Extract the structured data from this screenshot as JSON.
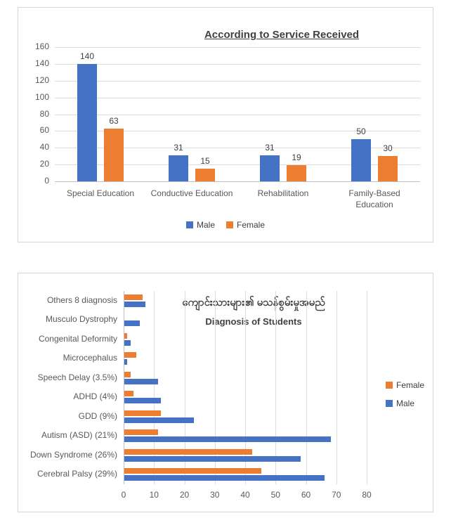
{
  "colors": {
    "male": "#4472C4",
    "female": "#ED7D31",
    "grid": "#dcdcdc",
    "axis_text": "#595959",
    "title_text": "#404040",
    "panel_border": "#d6d6d6"
  },
  "chart_data": [
    {
      "type": "bar",
      "orientation": "vertical",
      "title": "According to Service Received",
      "categories": [
        "Special Education",
        "Conductive Education",
        "Rehabilitation",
        "Family-Based Education"
      ],
      "series": [
        {
          "name": "Male",
          "color": "#4472C4",
          "values": [
            140,
            31,
            31,
            50
          ]
        },
        {
          "name": "Female",
          "color": "#ED7D31",
          "values": [
            63,
            15,
            19,
            30
          ]
        }
      ],
      "ylim": [
        0,
        160
      ],
      "ytick_step": 20,
      "yticks": [
        "0",
        "20",
        "40",
        "60",
        "80",
        "100",
        "120",
        "140",
        "160"
      ],
      "data_labels": true,
      "grid": true,
      "legend_position": "bottom"
    },
    {
      "type": "bar",
      "orientation": "horizontal",
      "title_line1": "ကျောင်းသားများ၏ မသန်စွမ်းမှုအမည်",
      "title_line2": "Diagnosis of Students",
      "categories": [
        "Others 8 diagnosis",
        "Musculo Dystrophy",
        "Congenital Deformity",
        "Microcephalus",
        "Speech Delay (3.5%)",
        "ADHD (4%)",
        "GDD (9%)",
        "Autism (ASD) (21%)",
        "Down Syndrome (26%)",
        "Cerebral Palsy (29%)"
      ],
      "series": [
        {
          "name": "Female",
          "color": "#ED7D31",
          "values": [
            6,
            0,
            1,
            4,
            2,
            3,
            12,
            11,
            42,
            45
          ]
        },
        {
          "name": "Male",
          "color": "#4472C4",
          "values": [
            7,
            5,
            2,
            1,
            11,
            12,
            23,
            68,
            58,
            66
          ]
        }
      ],
      "xlim": [
        0,
        80
      ],
      "xtick_step": 10,
      "xticks": [
        "0",
        "10",
        "20",
        "30",
        "40",
        "50",
        "60",
        "70",
        "80"
      ],
      "data_labels": false,
      "grid": true,
      "legend_position": "right"
    }
  ]
}
